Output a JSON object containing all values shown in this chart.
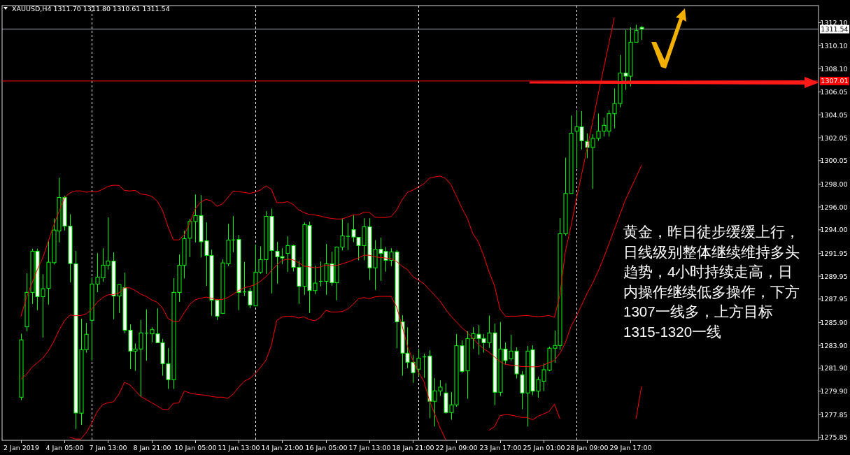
{
  "chart_data": {
    "type": "candlestick",
    "title": "XAUUSD,H4  1311.70 1311.80 1310.61 1311.54",
    "color": "#00ff00",
    "categories": [
      "2 Jan 2019",
      null,
      null,
      null,
      null,
      null,
      null,
      null,
      "4 Jan 05:00",
      null,
      null,
      null,
      null,
      null,
      null,
      null,
      "7 Jan 13:00",
      null,
      null,
      null,
      null,
      null,
      null,
      null,
      "8 Jan 21:00",
      null,
      null,
      null,
      null,
      null,
      null,
      null,
      "10 Jan 05:00",
      null,
      null,
      null,
      null,
      null,
      null,
      null,
      "11 Jan 13:00",
      null,
      null,
      null,
      null,
      null,
      null,
      null,
      "14 Jan 21:00",
      null,
      null,
      null,
      null,
      null,
      null,
      null,
      "16 Jan 05:00",
      null,
      null,
      null,
      null,
      null,
      null,
      null,
      "17 Jan 13:00",
      null,
      null,
      null,
      null,
      null,
      null,
      null,
      "18 Jan 21:00",
      null,
      null,
      null,
      null,
      null,
      null,
      null,
      "22 Jan 09:00",
      null,
      null,
      null,
      null,
      null,
      null,
      null,
      "23 Jan 17:00",
      null,
      null,
      null,
      null,
      null,
      null,
      null,
      "25 Jan 01:00",
      null,
      null,
      null,
      null,
      null,
      null,
      null,
      "28 Jan 09:00",
      null,
      null,
      null,
      null,
      null,
      null,
      null,
      "29 Jan 17:00",
      null,
      null
    ],
    "ohlc": [
      [
        1279.37,
        1284.93,
        1279.13,
        1284.38
      ],
      [
        1285.52,
        1290.2,
        1285.13,
        1288.53
      ],
      [
        1288.53,
        1292.35,
        1287.51,
        1292.13
      ],
      [
        1292.13,
        1292.35,
        1286.98,
        1288.16
      ],
      [
        1288.16,
        1290.11,
        1284.58,
        1288.85
      ],
      [
        1288.89,
        1293.0,
        1287.47,
        1291.17
      ],
      [
        1291.13,
        1294.99,
        1290.97,
        1293.98
      ],
      [
        1293.9,
        1298.55,
        1292.9,
        1296.83
      ],
      [
        1296.83,
        1296.99,
        1293.94,
        1294.32
      ],
      [
        1294.32,
        1295.36,
        1289.42,
        1291.05
      ],
      [
        1291.03,
        1292.15,
        1276.59,
        1277.99
      ],
      [
        1277.97,
        1286.23,
        1276.95,
        1283.52
      ],
      [
        1283.52,
        1285.86,
        1283.26,
        1284.87
      ],
      [
        1286.09,
        1289.83,
        1282.59,
        1289.26
      ],
      [
        1289.26,
        1291.96,
        1288.55,
        1289.87
      ],
      [
        1289.81,
        1292.39,
        1289.46,
        1290.91
      ],
      [
        1290.91,
        1295.08,
        1290.52,
        1291.27
      ],
      [
        1291.27,
        1292.03,
        1286.19,
        1288.22
      ],
      [
        1288.22,
        1289.2,
        1286.74,
        1289.2
      ],
      [
        1288.95,
        1290.26,
        1284.97,
        1285.23
      ],
      [
        1285.23,
        1285.74,
        1281.82,
        1283.4
      ],
      [
        1283.4,
        1284.07,
        1281.67,
        1283.58
      ],
      [
        1283.58,
        1286.11,
        1279.43,
        1284.99
      ],
      [
        1284.97,
        1287.04,
        1282.55,
        1284.97
      ],
      [
        1284.91,
        1285.48,
        1284.17,
        1285.27
      ],
      [
        1284.91,
        1287.14,
        1284.13,
        1284.13
      ],
      [
        1284.13,
        1284.46,
        1281.25,
        1282.3
      ],
      [
        1282.3,
        1283.67,
        1280.09,
        1280.9
      ],
      [
        1280.9,
        1289.77,
        1280.09,
        1288.53
      ],
      [
        1288.53,
        1291.84,
        1287.71,
        1290.91
      ],
      [
        1290.91,
        1293.92,
        1289.75,
        1293.23
      ],
      [
        1293.27,
        1294.95,
        1291.62,
        1294.73
      ],
      [
        1294.73,
        1297.09,
        1292.9,
        1295.24
      ],
      [
        1295.24,
        1297.03,
        1291.58,
        1292.96
      ],
      [
        1293.04,
        1294.65,
        1289.1,
        1291.76
      ],
      [
        1291.76,
        1292.27,
        1286.49,
        1287.86
      ],
      [
        1287.86,
        1287.94,
        1286.11,
        1286.45
      ],
      [
        1286.7,
        1291.42,
        1286.7,
        1291.11
      ],
      [
        1291.03,
        1294.53,
        1290.83,
        1293.1
      ],
      [
        1293.12,
        1295.2,
        1292.05,
        1293.12
      ],
      [
        1293.16,
        1293.55,
        1286.98,
        1288.53
      ],
      [
        1288.57,
        1291.19,
        1288.22,
        1288.57
      ],
      [
        1288.65,
        1288.93,
        1287.16,
        1287.43
      ],
      [
        1287.35,
        1292.7,
        1287.35,
        1290.3
      ],
      [
        1290.3,
        1292.55,
        1290.15,
        1291.4
      ],
      [
        1291.4,
        1295.63,
        1290.15,
        1295.18
      ],
      [
        1295.18,
        1295.85,
        1288.45,
        1292.19
      ],
      [
        1292.13,
        1292.94,
        1289.3,
        1291.64
      ],
      [
        1291.66,
        1292.39,
        1291.01,
        1291.54
      ],
      [
        1291.94,
        1293.43,
        1290.32,
        1292.62
      ],
      [
        1292.62,
        1292.7,
        1290.36,
        1290.72
      ],
      [
        1290.72,
        1291.29,
        1287.53,
        1289.06
      ],
      [
        1289.06,
        1294.65,
        1288.32,
        1294.45
      ],
      [
        1294.38,
        1294.71,
        1286.74,
        1288.69
      ],
      [
        1288.69,
        1290.87,
        1288.38,
        1289.34
      ],
      [
        1289.5,
        1291.23,
        1289.06,
        1289.5
      ],
      [
        1289.5,
        1292.76,
        1288.32,
        1291.03
      ],
      [
        1291.03,
        1292.09,
        1289.12,
        1289.38
      ],
      [
        1289.38,
        1292.55,
        1287.84,
        1292.49
      ],
      [
        1292.49,
        1295.0,
        1292.19,
        1293.47
      ],
      [
        1293.43,
        1294.59,
        1292.23,
        1293.43
      ],
      [
        1294.02,
        1295.3,
        1292.92,
        1293.37
      ],
      [
        1293.35,
        1293.35,
        1291.33,
        1292.62
      ],
      [
        1292.62,
        1295.0,
        1291.33,
        1294.26
      ],
      [
        1294.26,
        1295.0,
        1289.61,
        1290.68
      ],
      [
        1290.68,
        1293.1,
        1288.75,
        1292.31
      ],
      [
        1292.31,
        1293.31,
        1289.54,
        1291.94
      ],
      [
        1292.11,
        1292.49,
        1290.34,
        1291.33
      ],
      [
        1291.33,
        1292.39,
        1290.83,
        1292.07
      ],
      [
        1292.07,
        1292.23,
        1283.65,
        1285.96
      ],
      [
        1285.96,
        1286.53,
        1281.25,
        1283.22
      ],
      [
        1283.22,
        1285.48,
        1281.9,
        1282.42
      ],
      [
        1282.42,
        1283.06,
        1280.63,
        1281.51
      ],
      [
        1281.82,
        1283.6,
        1281.2,
        1282.79
      ],
      [
        1282.89,
        1283.18,
        1281.06,
        1282.89
      ],
      [
        1282.97,
        1283.48,
        1277.54,
        1279.01
      ],
      [
        1279.01,
        1281.04,
        1276.81,
        1279.92
      ],
      [
        1279.92,
        1280.84,
        1279.48,
        1280.25
      ],
      [
        1279.74,
        1280.59,
        1277.93,
        1278.03
      ],
      [
        1278.03,
        1279.82,
        1277.4,
        1278.7
      ],
      [
        1278.7,
        1284.89,
        1278.54,
        1283.87
      ],
      [
        1283.87,
        1284.34,
        1281.49,
        1281.63
      ],
      [
        1281.67,
        1285.13,
        1279.23,
        1284.5
      ],
      [
        1284.5,
        1285.5,
        1283.6,
        1284.93
      ],
      [
        1284.87,
        1285.68,
        1283.08,
        1284.5
      ],
      [
        1284.5,
        1284.89,
        1283.26,
        1284.13
      ],
      [
        1284.13,
        1286.51,
        1283.69,
        1284.99
      ],
      [
        1284.99,
        1285.8,
        1278.68,
        1279.8
      ],
      [
        1279.8,
        1285.94,
        1279.48,
        1283.58
      ],
      [
        1283.58,
        1284.15,
        1282.28,
        1282.57
      ],
      [
        1282.73,
        1284.83,
        1282.57,
        1283.4
      ],
      [
        1283.4,
        1283.73,
        1281.0,
        1281.41
      ],
      [
        1281.33,
        1281.65,
        1278.32,
        1279.74
      ],
      [
        1279.74,
        1283.85,
        1276.81,
        1283.4
      ],
      [
        1283.52,
        1283.91,
        1279.54,
        1279.9
      ],
      [
        1279.9,
        1281.16,
        1279.33,
        1280.9
      ],
      [
        1280.76,
        1282.32,
        1279.9,
        1281.77
      ],
      [
        1281.73,
        1283.79,
        1281.65,
        1283.65
      ],
      [
        1283.65,
        1285.19,
        1282.38,
        1283.89
      ],
      [
        1283.89,
        1295.02,
        1283.5,
        1293.65
      ],
      [
        1293.65,
        1300.31,
        1293.5,
        1297.18
      ],
      [
        1297.18,
        1303.99,
        1297.18,
        1302.44
      ],
      [
        1302.62,
        1304.38,
        1299.37,
        1303.0
      ],
      [
        1303.0,
        1304.38,
        1301.02,
        1301.78
      ],
      [
        1301.73,
        1302.42,
        1300.26,
        1301.2
      ],
      [
        1301.2,
        1302.34,
        1297.59,
        1301.99
      ],
      [
        1301.99,
        1304.17,
        1301.78,
        1302.62
      ],
      [
        1302.62,
        1303.79,
        1302.16,
        1303.13
      ],
      [
        1302.62,
        1304.45,
        1302.16,
        1304.15
      ],
      [
        1304.15,
        1306.36,
        1302.88,
        1305.04
      ],
      [
        1305.04,
        1309.28,
        1304.71,
        1307.71
      ],
      [
        1307.71,
        1311.47,
        1306.23,
        1307.43
      ],
      [
        1307.43,
        1311.7,
        1306.54,
        1310.4
      ],
      [
        1310.4,
        1311.93,
        1310.4,
        1311.42
      ],
      [
        1311.7,
        1311.8,
        1310.61,
        1311.54
      ]
    ],
    "series": [
      {
        "type": "line",
        "color": "#ff0000",
        "values": [
          1286.45,
          1288.08,
          1289.3,
          1290.52,
          1291.54,
          1292.96,
          1294.39,
          1295.61,
          1296.83,
          1297.23,
          1297.4,
          1297.4,
          1297.29,
          1297.33,
          1297.33,
          1297.54,
          1297.8,
          1297.9,
          1297.88,
          1297.44,
          1297.4,
          1297.44,
          1297.13,
          1297.07,
          1296.93,
          1296.52,
          1295.71,
          1294.28,
          1293.12,
          1293.12,
          1293.57,
          1294.59,
          1295.81,
          1296.42,
          1296.66,
          1296.52,
          1296.05,
          1296.26,
          1296.83,
          1297.38,
          1297.33,
          1297.27,
          1297.19,
          1297.29,
          1297.48,
          1297.84,
          1297.54,
          1296.38,
          1296.38,
          1296.46,
          1296.22,
          1295.75,
          1295.5,
          1295.34,
          1295.3,
          1295.2,
          1295.08,
          1295.0,
          1294.95,
          1294.95,
          1295.12,
          1295.3,
          1295.3,
          1295.54,
          1295.54,
          1295.1,
          1295.08,
          1295.08,
          1295.16,
          1295.71,
          1296.62,
          1297.27,
          1297.48,
          1297.74,
          1298.01,
          1298.51,
          1298.62,
          1298.7,
          1298.49,
          1297.94,
          1296.93,
          1295.91,
          1295.0,
          1293.67,
          1292.96,
          1291.74,
          1290.32,
          1289.1,
          1287.06,
          1286.45,
          1286.45,
          1286.45,
          1286.49,
          1286.51,
          1286.45,
          1286.41,
          1286.45,
          1286.51,
          1286.35,
          1288.28,
          1292.07,
          1294.23,
          1296.62,
          1298.86,
          1301.12,
          1303.38,
          1305.75,
          1308.01,
          1310.27,
          1312.54,
          null,
          null,
          null,
          null,
          null
        ]
      },
      {
        "type": "line",
        "color": "#ff0000",
        "values": [
          1280.96,
          1281.37,
          1281.98,
          1282.38,
          1282.79,
          1283.4,
          1284.22,
          1285.23,
          1286.05,
          1286.55,
          1286.49,
          1286.51,
          1286.66,
          1287.06,
          1287.67,
          1288.08,
          1288.32,
          1288.34,
          1288.49,
          1288.93,
          1288.93,
          1288.69,
          1288.38,
          1288.18,
          1287.88,
          1287.67,
          1287.16,
          1286.25,
          1286.0,
          1286.0,
          1286.76,
          1287.47,
          1287.88,
          1288.02,
          1288.12,
          1288.02,
          1287.88,
          1287.92,
          1288.08,
          1288.38,
          1288.69,
          1288.93,
          1289.06,
          1289.2,
          1289.5,
          1289.91,
          1290.42,
          1290.93,
          1291.33,
          1291.44,
          1291.37,
          1291.13,
          1290.83,
          1290.76,
          1290.68,
          1290.76,
          1290.93,
          1290.87,
          1290.89,
          1291.03,
          1291.17,
          1291.37,
          1291.54,
          1291.78,
          1291.78,
          1291.64,
          1291.58,
          1291.54,
          1291.48,
          1291.23,
          1290.83,
          1290.52,
          1289.91,
          1289.6,
          1289.3,
          1288.79,
          1288.28,
          1287.77,
          1287.06,
          1286.45,
          1285.94,
          1285.44,
          1285.03,
          1284.52,
          1284.01,
          1283.6,
          1283.3,
          1282.89,
          1282.49,
          1282.22,
          1282.18,
          1282.14,
          1282.04,
          1282.04,
          1282.02,
          1282.04,
          1282.18,
          1282.38,
          1282.59,
          1283.2,
          1284.11,
          1285.51,
          1286.4,
          1287.42,
          1288.44,
          1289.32,
          1290.34,
          1291.49,
          1292.76,
          1294.03,
          1295.3,
          1296.57,
          1297.59,
          1298.61,
          1299.62
        ]
      },
      {
        "type": "line",
        "color": "#ff0000",
        "values": [
          null,
          null,
          null,
          null,
          null,
          null,
          null,
          null,
          null,
          1275.88,
          1275.71,
          1275.71,
          1276.28,
          1277.1,
          1278.11,
          1278.72,
          1278.89,
          1278.97,
          1279.64,
          1280.66,
          1280.45,
          1279.94,
          1279.43,
          1279.17,
          1278.89,
          1278.62,
          1278.32,
          1278.28,
          1278.83,
          1278.87,
          1279.9,
          1279.74,
          1279.64,
          1279.58,
          1279.54,
          1279.43,
          1279.37,
          1279.37,
          1279.27,
          1279.64,
          1280.25,
          1280.76,
          1281.0,
          1281.41,
          1281.98,
          1282.59,
          1283.91,
          1286.09,
          1286.39,
          1286.45,
          1286.43,
          1286.29,
          1286.39,
          1286.15,
          1286.05,
          1286.35,
          1286.96,
          1286.82,
          1286.82,
          1286.86,
          1287.06,
          1287.47,
          1287.98,
          1288.08,
          1287.98,
          1288.14,
          1288.18,
          1288.18,
          1288.18,
          1287.27,
          1285.64,
          1283.81,
          1282.59,
          1281.57,
          1280.76,
          1279.13,
          1277.91,
          1276.69,
          1275.67,
          null,
          null,
          null,
          null,
          null,
          null,
          null,
          1276.49,
          1276.79,
          1277.75,
          1277.85,
          1277.81,
          1277.71,
          1277.6,
          1277.6,
          1277.4,
          1277.71,
          1277.91,
          1278.11,
          1278.76,
          1277.5,
          null,
          null,
          null,
          null,
          null,
          null,
          null,
          null,
          null,
          null,
          null,
          null,
          null,
          1277.5,
          1280.3
        ]
      }
    ],
    "grid": "x",
    "ylim": [
      1275.6,
      1313.6
    ],
    "yticks": [
      {
        "value": 1312.1,
        "label": "1312.10"
      },
      {
        "value": 1310.1,
        "label": "1310.10"
      },
      {
        "value": 1308.1,
        "label": "1308.10"
      },
      {
        "value": 1306.05,
        "label": "1306.05"
      },
      {
        "value": 1304.05,
        "label": "1304.05"
      },
      {
        "value": 1302.05,
        "label": "1302.05"
      },
      {
        "value": 1300.05,
        "label": "1300.05"
      },
      {
        "value": 1298,
        "label": "1298.00"
      },
      {
        "value": 1296,
        "label": "1296.00"
      },
      {
        "value": 1294,
        "label": "1294.00"
      },
      {
        "value": 1291.95,
        "label": "1291.95"
      },
      {
        "value": 1289.95,
        "label": "1289.95"
      },
      {
        "value": 1287.95,
        "label": "1287.95"
      },
      {
        "value": 1285.9,
        "label": "1285.90"
      },
      {
        "value": 1283.9,
        "label": "1283.90"
      },
      {
        "value": 1281.9,
        "label": "1281.90"
      },
      {
        "value": 1279.9,
        "label": "1279.90"
      },
      {
        "value": 1277.85,
        "label": "1277.85"
      },
      {
        "value": 1275.85,
        "label": "1275.85"
      }
    ],
    "ref_lines": [
      {
        "axis": "y",
        "value": 1311.54,
        "label": "1311.54",
        "color": "#a0a8b4"
      },
      {
        "axis": "y",
        "value": 1307.01,
        "label": "1307.01",
        "color": "#ff0000"
      }
    ],
    "annotations": [
      "黄金，昨日徒步缓缓上行，日线级别整体继续维持多头趋势，4小时持续走高，日内操作继续低多操作，下方1307一线多，上方目标1315-1320一线"
    ]
  }
}
